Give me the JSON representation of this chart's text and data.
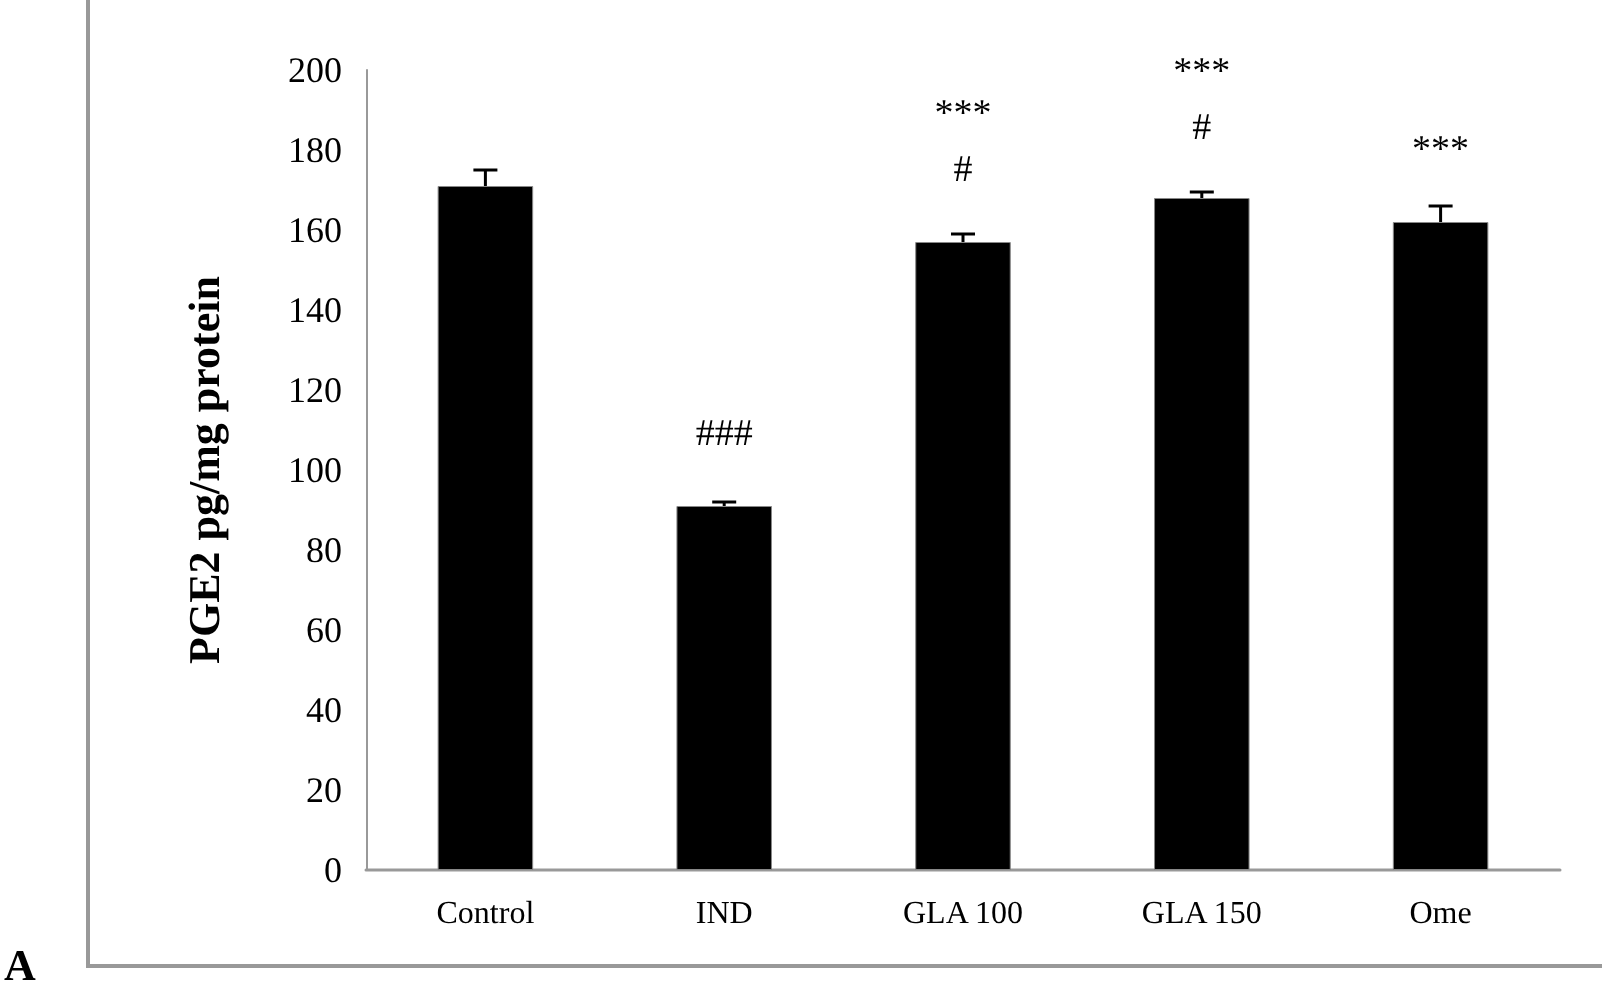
{
  "chart_data": {
    "type": "bar",
    "ylabel": "PGE2 pg/mg protein",
    "categories": [
      "Control",
      "IND",
      "GLA 100",
      "GLA 150",
      "Ome"
    ],
    "values": [
      171,
      91,
      157,
      168,
      162
    ],
    "errors": [
      [
        171,
        175
      ],
      [
        91,
        92
      ],
      [
        157,
        159
      ],
      [
        168,
        169.5
      ],
      [
        162,
        166
      ]
    ],
    "color": "#000000",
    "ylim": [
      0,
      200
    ],
    "yticks": [
      0,
      20,
      40,
      60,
      80,
      100,
      120,
      140,
      160,
      180,
      200
    ],
    "grid": false,
    "annotations": [
      "###",
      "***",
      "#",
      "***",
      "#",
      "***",
      "A"
    ]
  }
}
